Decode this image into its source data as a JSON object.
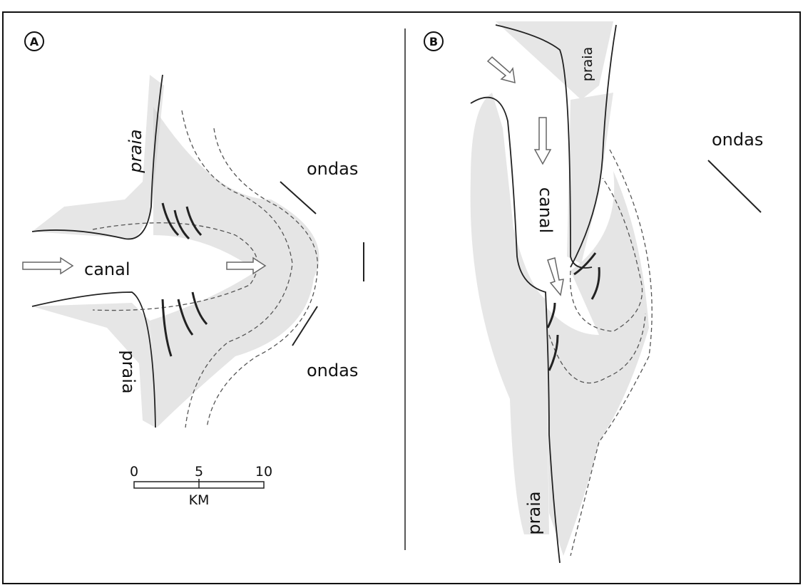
{
  "panel_a": {
    "label": "A",
    "beach_top": "praia",
    "beach_bottom": "praia",
    "channel": "canal",
    "waves_top": "ondas",
    "waves_bottom": "ondas",
    "scale": {
      "ticks": [
        "0",
        "5",
        "10"
      ],
      "unit": "KM"
    }
  },
  "panel_b": {
    "label": "B",
    "beach_top": "praia",
    "beach_bottom": "praia",
    "channel": "canal",
    "waves": "ondas"
  }
}
